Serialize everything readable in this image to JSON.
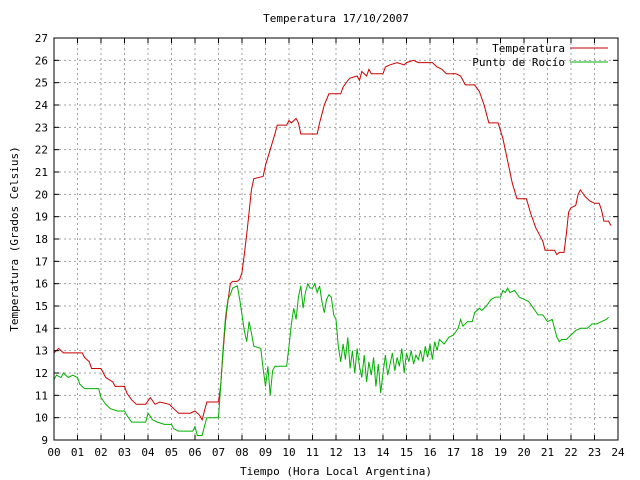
{
  "chart_data": {
    "type": "line",
    "title": "Temperatura 17/10/2007",
    "xlabel": "Tiempo (Hora Local Argentina)",
    "ylabel": "Temperatura (Grados Celsius)",
    "xlim": [
      0,
      24
    ],
    "ylim": [
      9,
      27
    ],
    "xticks": [
      0,
      1,
      2,
      3,
      4,
      5,
      6,
      7,
      8,
      9,
      10,
      11,
      12,
      13,
      14,
      15,
      16,
      17,
      18,
      19,
      20,
      21,
      22,
      23,
      24
    ],
    "xtick_labels": [
      "00",
      "01",
      "02",
      "03",
      "04",
      "05",
      "06",
      "07",
      "08",
      "09",
      "10",
      "11",
      "12",
      "13",
      "14",
      "15",
      "16",
      "17",
      "18",
      "19",
      "20",
      "21",
      "22",
      "23",
      "24"
    ],
    "yticks": [
      9,
      10,
      11,
      12,
      13,
      14,
      15,
      16,
      17,
      18,
      19,
      20,
      21,
      22,
      23,
      24,
      25,
      26,
      27
    ],
    "ytick_labels": [
      "9",
      "10",
      "11",
      "12",
      "13",
      "14",
      "15",
      "16",
      "17",
      "18",
      "19",
      "20",
      "21",
      "22",
      "23",
      "24",
      "25",
      "26",
      "27"
    ],
    "grid": true,
    "legend_position": "top-right",
    "series": [
      {
        "name": "Temperatura",
        "color": "#cc0000",
        "points": [
          [
            0,
            12.9
          ],
          [
            0.2,
            13.1
          ],
          [
            0.4,
            12.9
          ],
          [
            0.8,
            12.9
          ],
          [
            1.0,
            12.9
          ],
          [
            1.2,
            12.9
          ],
          [
            1.3,
            12.7
          ],
          [
            1.5,
            12.5
          ],
          [
            1.6,
            12.2
          ],
          [
            2.0,
            12.2
          ],
          [
            2.2,
            11.8
          ],
          [
            2.5,
            11.6
          ],
          [
            2.6,
            11.4
          ],
          [
            3.0,
            11.4
          ],
          [
            3.1,
            11.1
          ],
          [
            3.3,
            10.8
          ],
          [
            3.5,
            10.6
          ],
          [
            3.9,
            10.6
          ],
          [
            4.1,
            10.9
          ],
          [
            4.3,
            10.6
          ],
          [
            4.5,
            10.7
          ],
          [
            4.9,
            10.6
          ],
          [
            5.1,
            10.4
          ],
          [
            5.3,
            10.2
          ],
          [
            5.8,
            10.2
          ],
          [
            6.0,
            10.3
          ],
          [
            6.2,
            10.1
          ],
          [
            6.3,
            9.9
          ],
          [
            6.4,
            10.3
          ],
          [
            6.5,
            10.7
          ],
          [
            6.6,
            10.7
          ],
          [
            7.0,
            10.7
          ],
          [
            7.1,
            11.5
          ],
          [
            7.2,
            13.0
          ],
          [
            7.3,
            14.3
          ],
          [
            7.4,
            15.2
          ],
          [
            7.5,
            16.0
          ],
          [
            7.6,
            16.1
          ],
          [
            7.8,
            16.1
          ],
          [
            7.9,
            16.2
          ],
          [
            8.0,
            16.5
          ],
          [
            8.1,
            17.3
          ],
          [
            8.2,
            18.2
          ],
          [
            8.3,
            19.2
          ],
          [
            8.4,
            20.2
          ],
          [
            8.5,
            20.7
          ],
          [
            8.9,
            20.8
          ],
          [
            9.0,
            21.3
          ],
          [
            9.2,
            22.0
          ],
          [
            9.4,
            22.7
          ],
          [
            9.5,
            23.1
          ],
          [
            9.9,
            23.1
          ],
          [
            10.0,
            23.3
          ],
          [
            10.1,
            23.2
          ],
          [
            10.3,
            23.4
          ],
          [
            10.4,
            23.2
          ],
          [
            10.5,
            22.7
          ],
          [
            11.2,
            22.7
          ],
          [
            11.3,
            23.2
          ],
          [
            11.5,
            24.0
          ],
          [
            11.7,
            24.5
          ],
          [
            12.2,
            24.5
          ],
          [
            12.3,
            24.8
          ],
          [
            12.5,
            25.1
          ],
          [
            12.6,
            25.2
          ],
          [
            12.9,
            25.3
          ],
          [
            13.0,
            25.1
          ],
          [
            13.1,
            25.5
          ],
          [
            13.3,
            25.3
          ],
          [
            13.4,
            25.6
          ],
          [
            13.5,
            25.4
          ],
          [
            14.0,
            25.4
          ],
          [
            14.1,
            25.7
          ],
          [
            14.3,
            25.8
          ],
          [
            14.6,
            25.9
          ],
          [
            14.9,
            25.8
          ],
          [
            15.0,
            25.9
          ],
          [
            15.3,
            26.0
          ],
          [
            15.5,
            25.9
          ],
          [
            16.1,
            25.9
          ],
          [
            16.3,
            25.7
          ],
          [
            16.5,
            25.6
          ],
          [
            16.7,
            25.4
          ],
          [
            17.1,
            25.4
          ],
          [
            17.3,
            25.3
          ],
          [
            17.5,
            24.9
          ],
          [
            17.9,
            24.9
          ],
          [
            18.1,
            24.6
          ],
          [
            18.3,
            24.0
          ],
          [
            18.5,
            23.2
          ],
          [
            18.9,
            23.2
          ],
          [
            19.1,
            22.5
          ],
          [
            19.3,
            21.5
          ],
          [
            19.5,
            20.5
          ],
          [
            19.7,
            19.8
          ],
          [
            20.1,
            19.8
          ],
          [
            20.3,
            19.1
          ],
          [
            20.5,
            18.5
          ],
          [
            20.8,
            17.9
          ],
          [
            20.9,
            17.5
          ],
          [
            21.3,
            17.5
          ],
          [
            21.4,
            17.3
          ],
          [
            21.5,
            17.4
          ],
          [
            21.7,
            17.4
          ],
          [
            21.8,
            18.2
          ],
          [
            21.9,
            19.2
          ],
          [
            22.0,
            19.4
          ],
          [
            22.2,
            19.5
          ],
          [
            22.3,
            20.0
          ],
          [
            22.4,
            20.2
          ],
          [
            22.6,
            19.9
          ],
          [
            22.8,
            19.7
          ],
          [
            23.0,
            19.6
          ],
          [
            23.2,
            19.6
          ],
          [
            23.3,
            19.3
          ],
          [
            23.4,
            18.8
          ],
          [
            23.6,
            18.8
          ],
          [
            23.7,
            18.6
          ]
        ]
      },
      {
        "name": "Punto de Rocío",
        "color": "#00b000",
        "points": [
          [
            0,
            11.7
          ],
          [
            0.1,
            11.9
          ],
          [
            0.3,
            11.8
          ],
          [
            0.4,
            12.0
          ],
          [
            0.6,
            11.8
          ],
          [
            0.8,
            11.9
          ],
          [
            1.0,
            11.8
          ],
          [
            1.1,
            11.5
          ],
          [
            1.3,
            11.3
          ],
          [
            1.9,
            11.3
          ],
          [
            2.0,
            10.9
          ],
          [
            2.2,
            10.6
          ],
          [
            2.4,
            10.4
          ],
          [
            2.7,
            10.3
          ],
          [
            3.0,
            10.3
          ],
          [
            3.1,
            10.1
          ],
          [
            3.3,
            9.8
          ],
          [
            3.9,
            9.8
          ],
          [
            4.0,
            10.2
          ],
          [
            4.2,
            9.9
          ],
          [
            4.4,
            9.8
          ],
          [
            4.7,
            9.7
          ],
          [
            5.0,
            9.7
          ],
          [
            5.1,
            9.5
          ],
          [
            5.3,
            9.4
          ],
          [
            5.9,
            9.4
          ],
          [
            6.0,
            9.6
          ],
          [
            6.1,
            9.2
          ],
          [
            6.3,
            9.2
          ],
          [
            6.4,
            9.6
          ],
          [
            6.5,
            10.0
          ],
          [
            7.0,
            10.0
          ],
          [
            7.1,
            11.5
          ],
          [
            7.2,
            13.2
          ],
          [
            7.3,
            14.5
          ],
          [
            7.4,
            15.3
          ],
          [
            7.5,
            15.5
          ],
          [
            7.6,
            15.8
          ],
          [
            7.8,
            15.9
          ],
          [
            7.9,
            15.3
          ],
          [
            8.0,
            14.6
          ],
          [
            8.1,
            13.9
          ],
          [
            8.2,
            13.4
          ],
          [
            8.3,
            14.3
          ],
          [
            8.4,
            13.8
          ],
          [
            8.5,
            13.2
          ],
          [
            8.8,
            13.1
          ],
          [
            8.9,
            12.2
          ],
          [
            9.0,
            11.4
          ],
          [
            9.1,
            12.3
          ],
          [
            9.2,
            11.0
          ],
          [
            9.3,
            12.1
          ],
          [
            9.4,
            12.3
          ],
          [
            9.9,
            12.3
          ],
          [
            10.0,
            13.2
          ],
          [
            10.1,
            14.2
          ],
          [
            10.2,
            14.9
          ],
          [
            10.3,
            14.4
          ],
          [
            10.4,
            15.4
          ],
          [
            10.5,
            15.9
          ],
          [
            10.6,
            14.9
          ],
          [
            10.7,
            15.6
          ],
          [
            10.8,
            16.0
          ],
          [
            10.9,
            15.8
          ],
          [
            11.0,
            15.8
          ],
          [
            11.1,
            16.0
          ],
          [
            11.2,
            15.6
          ],
          [
            11.3,
            15.9
          ],
          [
            11.4,
            15.2
          ],
          [
            11.5,
            14.7
          ],
          [
            11.6,
            15.3
          ],
          [
            11.7,
            15.5
          ],
          [
            11.8,
            15.4
          ],
          [
            11.9,
            14.6
          ],
          [
            12.0,
            14.4
          ],
          [
            12.1,
            13.2
          ],
          [
            12.2,
            12.5
          ],
          [
            12.3,
            13.3
          ],
          [
            12.4,
            12.6
          ],
          [
            12.5,
            13.6
          ],
          [
            12.6,
            12.2
          ],
          [
            12.7,
            13.0
          ],
          [
            12.8,
            12.0
          ],
          [
            12.9,
            13.1
          ],
          [
            13.0,
            12.3
          ],
          [
            13.1,
            11.8
          ],
          [
            13.2,
            12.8
          ],
          [
            13.3,
            11.6
          ],
          [
            13.4,
            12.5
          ],
          [
            13.5,
            11.9
          ],
          [
            13.6,
            12.7
          ],
          [
            13.7,
            11.4
          ],
          [
            13.8,
            12.4
          ],
          [
            13.9,
            11.1
          ],
          [
            14.0,
            12.0
          ],
          [
            14.1,
            12.8
          ],
          [
            14.2,
            11.9
          ],
          [
            14.3,
            12.4
          ],
          [
            14.4,
            12.9
          ],
          [
            14.5,
            12.1
          ],
          [
            14.6,
            12.7
          ],
          [
            14.7,
            12.3
          ],
          [
            14.8,
            13.1
          ],
          [
            14.9,
            12.0
          ],
          [
            15.0,
            12.9
          ],
          [
            15.1,
            12.5
          ],
          [
            15.2,
            13.0
          ],
          [
            15.3,
            12.4
          ],
          [
            15.4,
            12.8
          ],
          [
            15.5,
            12.6
          ],
          [
            15.6,
            13.0
          ],
          [
            15.7,
            12.5
          ],
          [
            15.8,
            13.2
          ],
          [
            15.9,
            12.7
          ],
          [
            16.0,
            13.3
          ],
          [
            16.1,
            12.6
          ],
          [
            16.2,
            13.4
          ],
          [
            16.3,
            13.0
          ],
          [
            16.4,
            13.5
          ],
          [
            16.6,
            13.3
          ],
          [
            16.8,
            13.6
          ],
          [
            17.0,
            13.7
          ],
          [
            17.2,
            14.0
          ],
          [
            17.3,
            14.4
          ],
          [
            17.4,
            14.1
          ],
          [
            17.6,
            14.3
          ],
          [
            17.8,
            14.3
          ],
          [
            17.9,
            14.7
          ],
          [
            18.1,
            14.9
          ],
          [
            18.2,
            14.8
          ],
          [
            18.4,
            15.0
          ],
          [
            18.6,
            15.3
          ],
          [
            18.8,
            15.4
          ],
          [
            19.0,
            15.4
          ],
          [
            19.1,
            15.7
          ],
          [
            19.2,
            15.6
          ],
          [
            19.3,
            15.8
          ],
          [
            19.4,
            15.6
          ],
          [
            19.6,
            15.7
          ],
          [
            19.8,
            15.4
          ],
          [
            20.0,
            15.3
          ],
          [
            20.2,
            15.2
          ],
          [
            20.4,
            14.9
          ],
          [
            20.6,
            14.6
          ],
          [
            20.8,
            14.6
          ],
          [
            21.0,
            14.3
          ],
          [
            21.2,
            14.4
          ],
          [
            21.3,
            14.0
          ],
          [
            21.4,
            13.6
          ],
          [
            21.5,
            13.4
          ],
          [
            21.6,
            13.5
          ],
          [
            21.8,
            13.5
          ],
          [
            22.0,
            13.7
          ],
          [
            22.2,
            13.9
          ],
          [
            22.4,
            14.0
          ],
          [
            22.7,
            14.0
          ],
          [
            22.9,
            14.2
          ],
          [
            23.1,
            14.2
          ],
          [
            23.3,
            14.3
          ],
          [
            23.5,
            14.4
          ],
          [
            23.6,
            14.5
          ]
        ]
      }
    ]
  }
}
